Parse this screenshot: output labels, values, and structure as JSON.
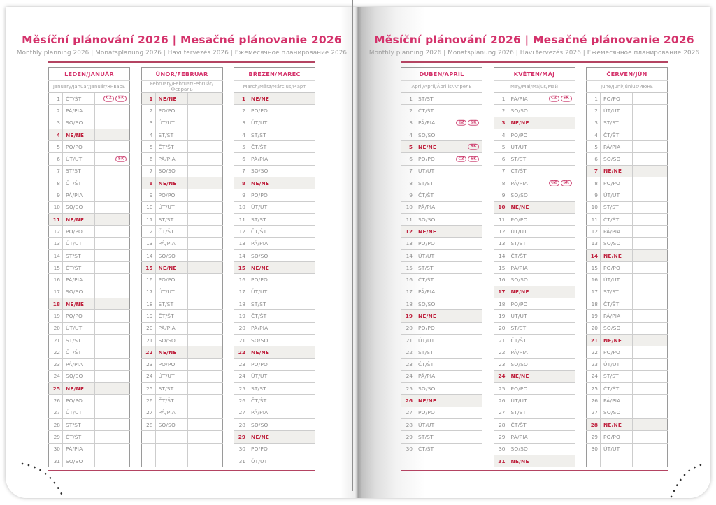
{
  "book": {
    "title": "Měsíční plánování 2026 | Mesačné plánovanie 2026",
    "subtitle": "Monthly planning 2026 | Monatsplanung 2026 | Havi tervezés 2026 | Ежемесячное планирование 2026"
  },
  "colors": {
    "accent": "#d4326b",
    "rule": "#b44462",
    "sunday_text": "#bf2440",
    "sunday_row_bg": "#f0efec",
    "grid_line": "#cdcdcd",
    "table_border": "#9a9a9a",
    "day_text": "#8d8d8d"
  },
  "legend": {
    "holiday_badges": [
      "CZ",
      "SK"
    ]
  },
  "pages": [
    {
      "side": "left",
      "months": [
        {
          "name": "LEDEN/JANUÁR",
          "intl": "January/Januar/Január/Январь",
          "pad": 0,
          "days": [
            {
              "n": 1,
              "d": "ČT/ŠT",
              "h": [
                "CZ",
                "SK"
              ]
            },
            {
              "n": 2,
              "d": "PÁ/PIA"
            },
            {
              "n": 3,
              "d": "SO/SO"
            },
            {
              "n": 4,
              "d": "NE/NE"
            },
            {
              "n": 5,
              "d": "PO/PO"
            },
            {
              "n": 6,
              "d": "ÚT/UT",
              "h": [
                "SK"
              ]
            },
            {
              "n": 7,
              "d": "ST/ST"
            },
            {
              "n": 8,
              "d": "ČT/ŠT"
            },
            {
              "n": 9,
              "d": "PÁ/PIA"
            },
            {
              "n": 10,
              "d": "SO/SO"
            },
            {
              "n": 11,
              "d": "NE/NE"
            },
            {
              "n": 12,
              "d": "PO/PO"
            },
            {
              "n": 13,
              "d": "ÚT/UT"
            },
            {
              "n": 14,
              "d": "ST/ST"
            },
            {
              "n": 15,
              "d": "ČT/ŠT"
            },
            {
              "n": 16,
              "d": "PÁ/PIA"
            },
            {
              "n": 17,
              "d": "SO/SO"
            },
            {
              "n": 18,
              "d": "NE/NE"
            },
            {
              "n": 19,
              "d": "PO/PO"
            },
            {
              "n": 20,
              "d": "ÚT/UT"
            },
            {
              "n": 21,
              "d": "ST/ST"
            },
            {
              "n": 22,
              "d": "ČT/ŠT"
            },
            {
              "n": 23,
              "d": "PÁ/PIA"
            },
            {
              "n": 24,
              "d": "SO/SO"
            },
            {
              "n": 25,
              "d": "NE/NE"
            },
            {
              "n": 26,
              "d": "PO/PO"
            },
            {
              "n": 27,
              "d": "ÚT/UT"
            },
            {
              "n": 28,
              "d": "ST/ST"
            },
            {
              "n": 29,
              "d": "ČT/ŠT"
            },
            {
              "n": 30,
              "d": "PÁ/PIA"
            },
            {
              "n": 31,
              "d": "SO/SO"
            }
          ]
        },
        {
          "name": "ÚNOR/FEBRUÁR",
          "intl": "February/Februar/Február/Февраль",
          "pad": 3,
          "days": [
            {
              "n": 1,
              "d": "NE/NE"
            },
            {
              "n": 2,
              "d": "PO/PO"
            },
            {
              "n": 3,
              "d": "ÚT/UT"
            },
            {
              "n": 4,
              "d": "ST/ST"
            },
            {
              "n": 5,
              "d": "ČT/ŠT"
            },
            {
              "n": 6,
              "d": "PÁ/PIA"
            },
            {
              "n": 7,
              "d": "SO/SO"
            },
            {
              "n": 8,
              "d": "NE/NE"
            },
            {
              "n": 9,
              "d": "PO/PO"
            },
            {
              "n": 10,
              "d": "ÚT/UT"
            },
            {
              "n": 11,
              "d": "ST/ST"
            },
            {
              "n": 12,
              "d": "ČT/ŠT"
            },
            {
              "n": 13,
              "d": "PÁ/PIA"
            },
            {
              "n": 14,
              "d": "SO/SO"
            },
            {
              "n": 15,
              "d": "NE/NE"
            },
            {
              "n": 16,
              "d": "PO/PO"
            },
            {
              "n": 17,
              "d": "ÚT/UT"
            },
            {
              "n": 18,
              "d": "ST/ST"
            },
            {
              "n": 19,
              "d": "ČT/ŠT"
            },
            {
              "n": 20,
              "d": "PÁ/PIA"
            },
            {
              "n": 21,
              "d": "SO/SO"
            },
            {
              "n": 22,
              "d": "NE/NE"
            },
            {
              "n": 23,
              "d": "PO/PO"
            },
            {
              "n": 24,
              "d": "ÚT/UT"
            },
            {
              "n": 25,
              "d": "ST/ST"
            },
            {
              "n": 26,
              "d": "ČT/ŠT"
            },
            {
              "n": 27,
              "d": "PÁ/PIA"
            },
            {
              "n": 28,
              "d": "SO/SO"
            }
          ]
        },
        {
          "name": "BŘEZEN/MAREC",
          "intl": "March/März/Március/Март",
          "pad": 0,
          "days": [
            {
              "n": 1,
              "d": "NE/NE"
            },
            {
              "n": 2,
              "d": "PO/PO"
            },
            {
              "n": 3,
              "d": "ÚT/UT"
            },
            {
              "n": 4,
              "d": "ST/ST"
            },
            {
              "n": 5,
              "d": "ČT/ŠT"
            },
            {
              "n": 6,
              "d": "PÁ/PIA"
            },
            {
              "n": 7,
              "d": "SO/SO"
            },
            {
              "n": 8,
              "d": "NE/NE"
            },
            {
              "n": 9,
              "d": "PO/PO"
            },
            {
              "n": 10,
              "d": "ÚT/UT"
            },
            {
              "n": 11,
              "d": "ST/ST"
            },
            {
              "n": 12,
              "d": "ČT/ŠT"
            },
            {
              "n": 13,
              "d": "PÁ/PIA"
            },
            {
              "n": 14,
              "d": "SO/SO"
            },
            {
              "n": 15,
              "d": "NE/NE"
            },
            {
              "n": 16,
              "d": "PO/PO"
            },
            {
              "n": 17,
              "d": "ÚT/UT"
            },
            {
              "n": 18,
              "d": "ST/ST"
            },
            {
              "n": 19,
              "d": "ČT/ŠT"
            },
            {
              "n": 20,
              "d": "PÁ/PIA"
            },
            {
              "n": 21,
              "d": "SO/SO"
            },
            {
              "n": 22,
              "d": "NE/NE"
            },
            {
              "n": 23,
              "d": "PO/PO"
            },
            {
              "n": 24,
              "d": "ÚT/UT"
            },
            {
              "n": 25,
              "d": "ST/ST"
            },
            {
              "n": 26,
              "d": "ČT/ŠT"
            },
            {
              "n": 27,
              "d": "PÁ/PIA"
            },
            {
              "n": 28,
              "d": "SO/SO"
            },
            {
              "n": 29,
              "d": "NE/NE"
            },
            {
              "n": 30,
              "d": "PO/PO"
            },
            {
              "n": 31,
              "d": "ÚT/UT"
            }
          ]
        }
      ]
    },
    {
      "side": "right",
      "months": [
        {
          "name": "DUBEN/APRÍL",
          "intl": "April/April/Április/Апрель",
          "pad": 1,
          "days": [
            {
              "n": 1,
              "d": "ST/ST"
            },
            {
              "n": 2,
              "d": "ČT/ŠT"
            },
            {
              "n": 3,
              "d": "PÁ/PIA",
              "h": [
                "CZ",
                "SK"
              ]
            },
            {
              "n": 4,
              "d": "SO/SO"
            },
            {
              "n": 5,
              "d": "NE/NE",
              "h": [
                "SK"
              ]
            },
            {
              "n": 6,
              "d": "PO/PO",
              "h": [
                "CZ",
                "SK"
              ]
            },
            {
              "n": 7,
              "d": "ÚT/UT"
            },
            {
              "n": 8,
              "d": "ST/ST"
            },
            {
              "n": 9,
              "d": "ČT/ŠT"
            },
            {
              "n": 10,
              "d": "PÁ/PIA"
            },
            {
              "n": 11,
              "d": "SO/SO"
            },
            {
              "n": 12,
              "d": "NE/NE"
            },
            {
              "n": 13,
              "d": "PO/PO"
            },
            {
              "n": 14,
              "d": "ÚT/UT"
            },
            {
              "n": 15,
              "d": "ST/ST"
            },
            {
              "n": 16,
              "d": "ČT/ŠT"
            },
            {
              "n": 17,
              "d": "PÁ/PIA"
            },
            {
              "n": 18,
              "d": "SO/SO"
            },
            {
              "n": 19,
              "d": "NE/NE"
            },
            {
              "n": 20,
              "d": "PO/PO"
            },
            {
              "n": 21,
              "d": "ÚT/UT"
            },
            {
              "n": 22,
              "d": "ST/ST"
            },
            {
              "n": 23,
              "d": "ČT/ŠT"
            },
            {
              "n": 24,
              "d": "PÁ/PIA"
            },
            {
              "n": 25,
              "d": "SO/SO"
            },
            {
              "n": 26,
              "d": "NE/NE"
            },
            {
              "n": 27,
              "d": "PO/PO"
            },
            {
              "n": 28,
              "d": "ÚT/UT"
            },
            {
              "n": 29,
              "d": "ST/ST"
            },
            {
              "n": 30,
              "d": "ČT/ŠT"
            }
          ]
        },
        {
          "name": "KVĚTEN/MÁJ",
          "intl": "May/Mai/Május/Май",
          "pad": 0,
          "days": [
            {
              "n": 1,
              "d": "PÁ/PIA",
              "h": [
                "CZ",
                "SK"
              ]
            },
            {
              "n": 2,
              "d": "SO/SO"
            },
            {
              "n": 3,
              "d": "NE/NE"
            },
            {
              "n": 4,
              "d": "PO/PO"
            },
            {
              "n": 5,
              "d": "ÚT/UT"
            },
            {
              "n": 6,
              "d": "ST/ST"
            },
            {
              "n": 7,
              "d": "ČT/ŠT"
            },
            {
              "n": 8,
              "d": "PÁ/PIA",
              "h": [
                "CZ",
                "SK"
              ]
            },
            {
              "n": 9,
              "d": "SO/SO"
            },
            {
              "n": 10,
              "d": "NE/NE"
            },
            {
              "n": 11,
              "d": "PO/PO"
            },
            {
              "n": 12,
              "d": "ÚT/UT"
            },
            {
              "n": 13,
              "d": "ST/ST"
            },
            {
              "n": 14,
              "d": "ČT/ŠT"
            },
            {
              "n": 15,
              "d": "PÁ/PIA"
            },
            {
              "n": 16,
              "d": "SO/SO"
            },
            {
              "n": 17,
              "d": "NE/NE"
            },
            {
              "n": 18,
              "d": "PO/PO"
            },
            {
              "n": 19,
              "d": "ÚT/UT"
            },
            {
              "n": 20,
              "d": "ST/ST"
            },
            {
              "n": 21,
              "d": "ČT/ŠT"
            },
            {
              "n": 22,
              "d": "PÁ/PIA"
            },
            {
              "n": 23,
              "d": "SO/SO"
            },
            {
              "n": 24,
              "d": "NE/NE"
            },
            {
              "n": 25,
              "d": "PO/PO"
            },
            {
              "n": 26,
              "d": "ÚT/UT"
            },
            {
              "n": 27,
              "d": "ST/ST"
            },
            {
              "n": 28,
              "d": "ČT/ŠT"
            },
            {
              "n": 29,
              "d": "PÁ/PIA"
            },
            {
              "n": 30,
              "d": "SO/SO"
            },
            {
              "n": 31,
              "d": "NE/NE"
            }
          ]
        },
        {
          "name": "ČERVEN/JÚN",
          "intl": "June/Juni/Június/Июнь",
          "pad": 1,
          "days": [
            {
              "n": 1,
              "d": "PO/PO"
            },
            {
              "n": 2,
              "d": "ÚT/UT"
            },
            {
              "n": 3,
              "d": "ST/ST"
            },
            {
              "n": 4,
              "d": "ČT/ŠT"
            },
            {
              "n": 5,
              "d": "PÁ/PIA"
            },
            {
              "n": 6,
              "d": "SO/SO"
            },
            {
              "n": 7,
              "d": "NE/NE"
            },
            {
              "n": 8,
              "d": "PO/PO"
            },
            {
              "n": 9,
              "d": "ÚT/UT"
            },
            {
              "n": 10,
              "d": "ST/ST"
            },
            {
              "n": 11,
              "d": "ČT/ŠT"
            },
            {
              "n": 12,
              "d": "PÁ/PIA"
            },
            {
              "n": 13,
              "d": "SO/SO"
            },
            {
              "n": 14,
              "d": "NE/NE"
            },
            {
              "n": 15,
              "d": "PO/PO"
            },
            {
              "n": 16,
              "d": "ÚT/UT"
            },
            {
              "n": 17,
              "d": "ST/ST"
            },
            {
              "n": 18,
              "d": "ČT/ŠT"
            },
            {
              "n": 19,
              "d": "PÁ/PIA"
            },
            {
              "n": 20,
              "d": "SO/SO"
            },
            {
              "n": 21,
              "d": "NE/NE"
            },
            {
              "n": 22,
              "d": "PO/PO"
            },
            {
              "n": 23,
              "d": "ÚT/UT"
            },
            {
              "n": 24,
              "d": "ST/ST"
            },
            {
              "n": 25,
              "d": "ČT/ŠT"
            },
            {
              "n": 26,
              "d": "PÁ/PIA"
            },
            {
              "n": 27,
              "d": "SO/SO"
            },
            {
              "n": 28,
              "d": "NE/NE"
            },
            {
              "n": 29,
              "d": "PO/PO"
            },
            {
              "n": 30,
              "d": "ÚT/UT"
            }
          ]
        }
      ]
    }
  ]
}
